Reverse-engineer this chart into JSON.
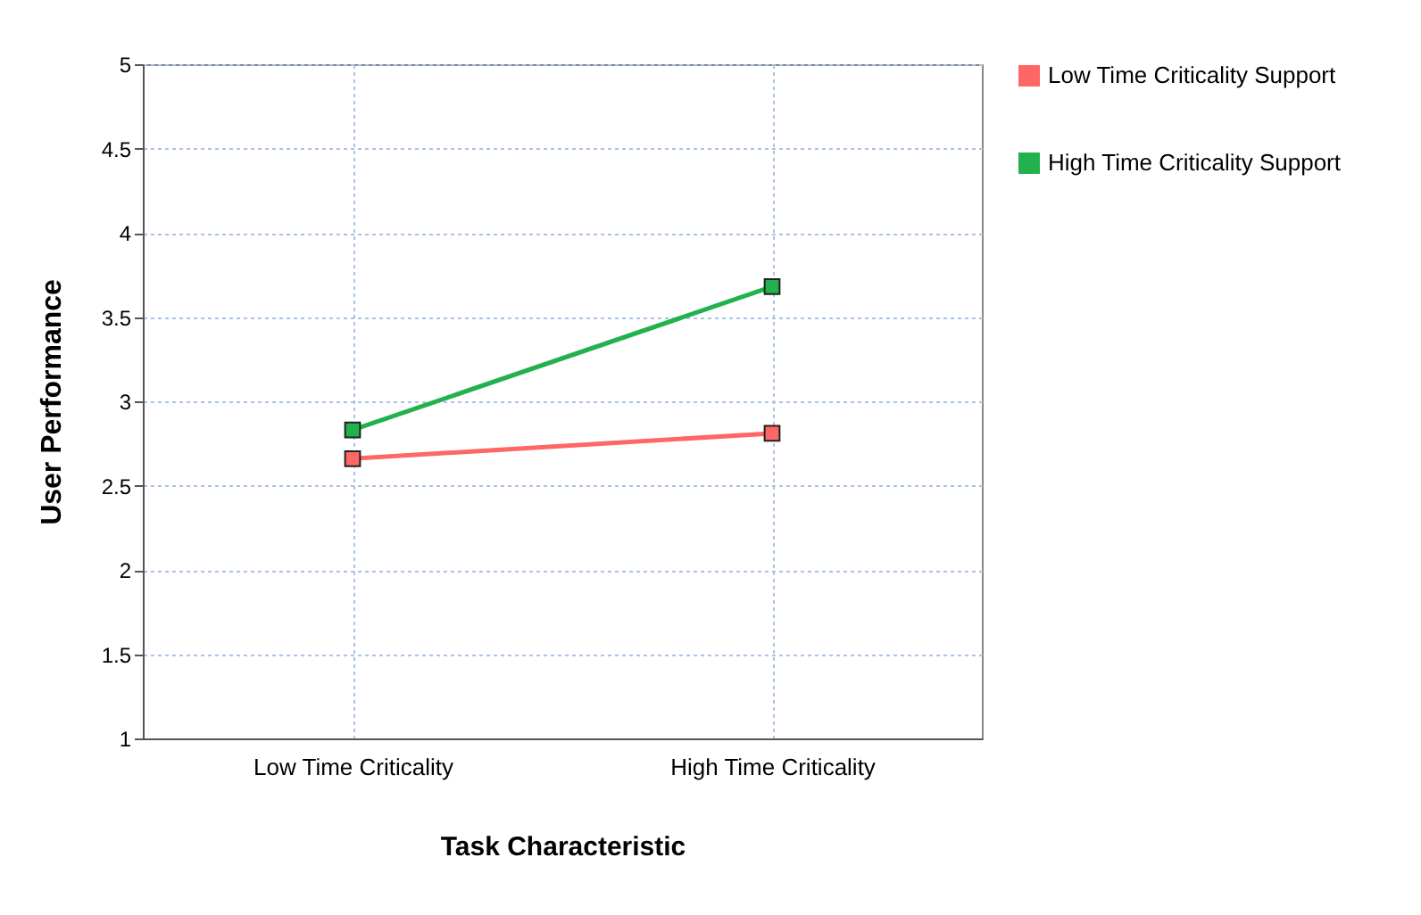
{
  "chart_data": {
    "type": "line",
    "xlabel": "Task Characteristic",
    "ylabel": "User Performance",
    "categories": [
      "Low Time Criticality",
      "High Time Criticality"
    ],
    "series": [
      {
        "name": "Low Time Criticality Support",
        "color": "#ff6666",
        "values": [
          2.66,
          2.81
        ]
      },
      {
        "name": "High Time Criticality Support",
        "color": "#22b14c",
        "values": [
          2.83,
          3.68
        ]
      }
    ],
    "ylim": [
      1,
      5
    ],
    "yticks": [
      1,
      1.5,
      2,
      2.5,
      3,
      3.5,
      4,
      4.5,
      5
    ],
    "grid": true,
    "legend": "right",
    "marker": "square",
    "line_style": "solid"
  }
}
